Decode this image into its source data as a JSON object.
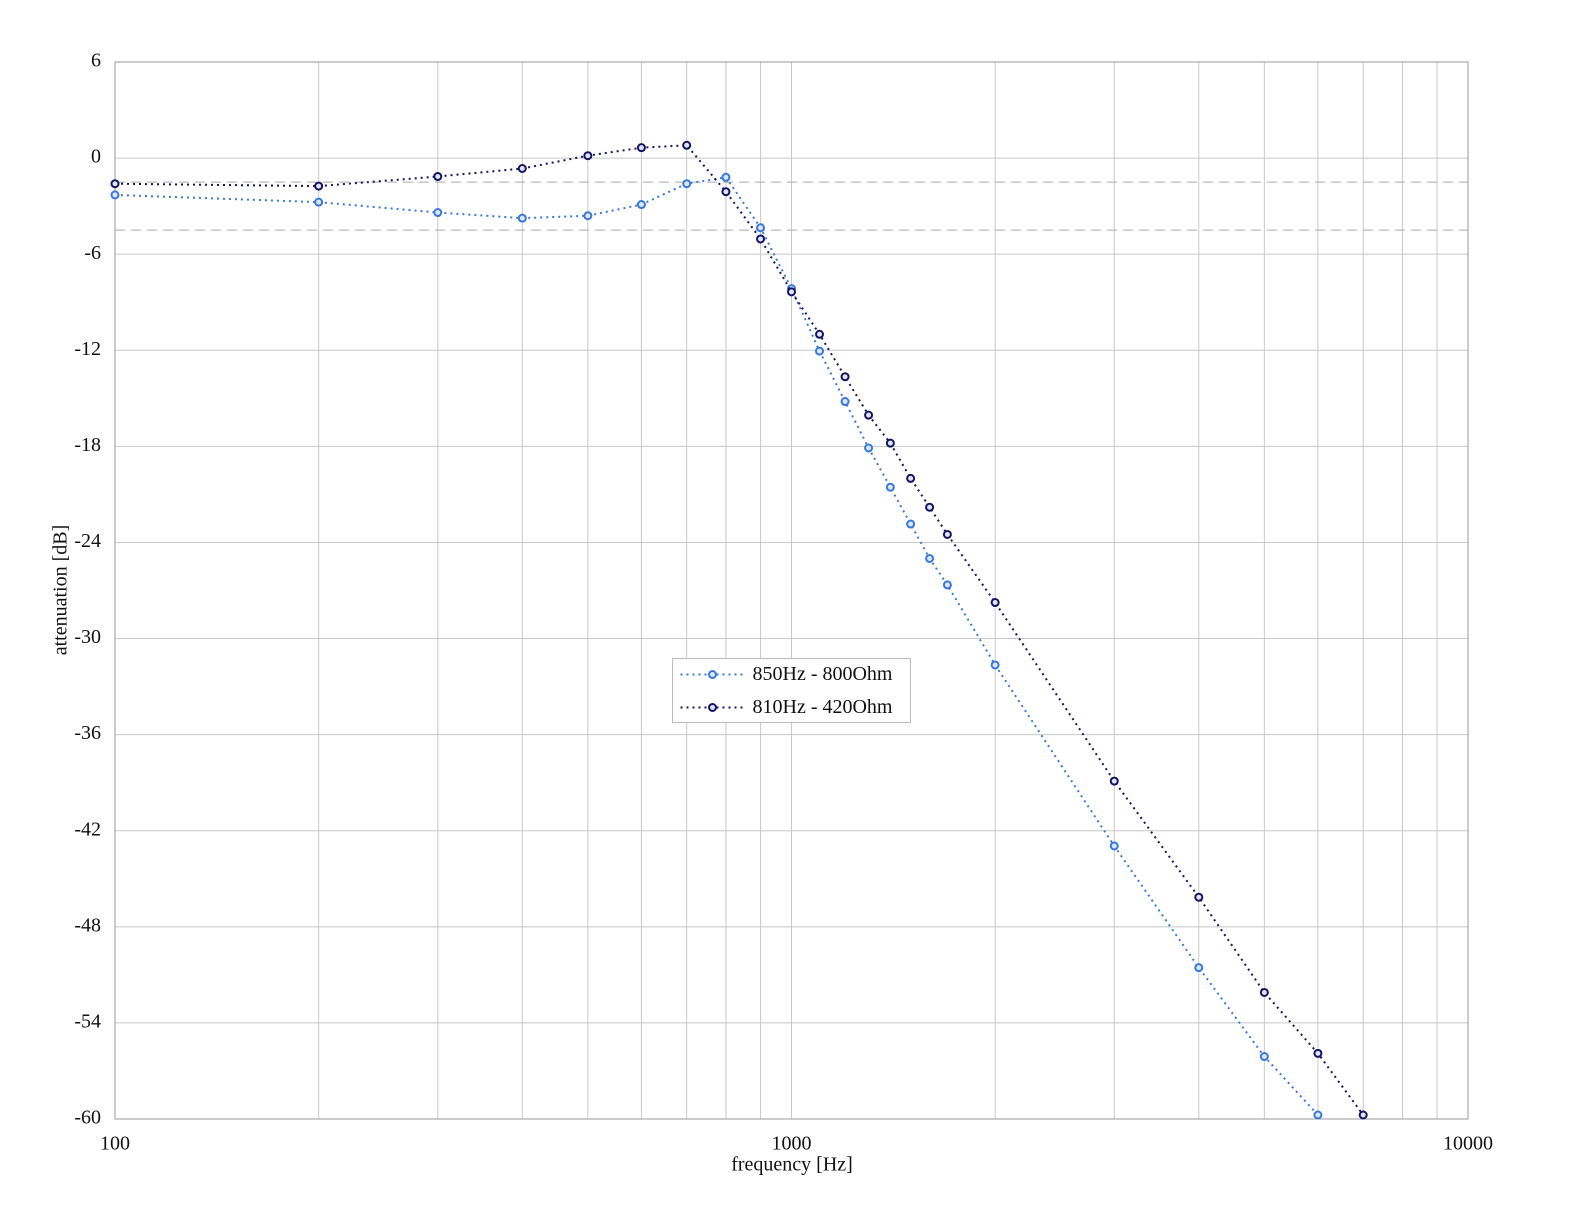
{
  "chart_data": {
    "type": "line",
    "x_label": "frequency [Hz]",
    "y_label": "attenuation [dB]",
    "xlog": true,
    "xlim": [
      100,
      10000
    ],
    "xticks": [
      100,
      1000,
      10000
    ],
    "xminor_grid": [
      200,
      300,
      400,
      500,
      600,
      700,
      800,
      900,
      2000,
      3000,
      4000,
      5000,
      6000,
      7000,
      8000,
      9000
    ],
    "ylim": [
      -60,
      6
    ],
    "yticks": [
      -60,
      -54,
      -48,
      -42,
      -36,
      -30,
      -24,
      -18,
      -12,
      -6,
      0,
      6
    ],
    "hlines": [
      -1.5,
      -4.5
    ],
    "grid": true,
    "legend": "center",
    "series": [
      {
        "name": "850Hz - 800Ohm",
        "color": "#3a78d8",
        "x": [
          100,
          200,
          300,
          400,
          500,
          600,
          700,
          800,
          900,
          1000,
          1100,
          1200,
          1300,
          1400,
          1500,
          1600,
          1700,
          2000,
          3000,
          4000,
          5000,
          6000
        ],
        "values": [
          -2.3,
          -2.75,
          -3.4,
          -3.75,
          -3.6,
          -2.9,
          -1.6,
          -1.2,
          -4.35,
          -8.15,
          -12.05,
          -15.2,
          -18.1,
          -20.55,
          -22.85,
          -25.0,
          -26.65,
          -31.65,
          -42.95,
          -50.55,
          -56.1,
          -59.75
        ]
      },
      {
        "name": "810Hz - 420Ohm",
        "color": "#16145e",
        "x": [
          100,
          200,
          300,
          400,
          500,
          600,
          700,
          800,
          900,
          1000,
          1100,
          1200,
          1300,
          1400,
          1500,
          1600,
          1700,
          2000,
          3000,
          4000,
          5000,
          6000,
          7000
        ],
        "values": [
          -1.6,
          -1.75,
          -1.15,
          -0.65,
          0.15,
          0.65,
          0.8,
          -2.1,
          -5.05,
          -8.35,
          -11.0,
          -13.65,
          -16.05,
          -17.8,
          -20.0,
          -21.8,
          -23.5,
          -27.75,
          -38.9,
          -46.15,
          -52.1,
          -55.9,
          -59.75
        ]
      }
    ]
  }
}
